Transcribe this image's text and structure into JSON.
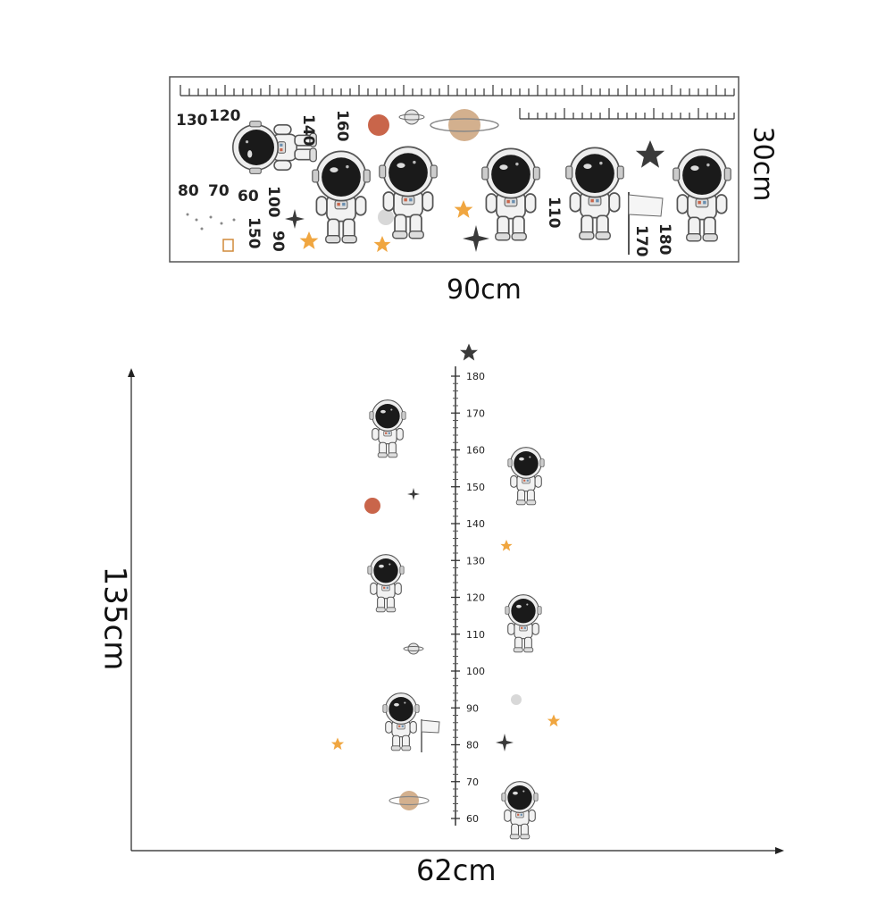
{
  "top_sheet": {
    "width_label": "90cm",
    "height_label": "30cm",
    "numbers": [
      "130",
      "120",
      "140",
      "160",
      "80",
      "70",
      "60",
      "100",
      "150",
      "90",
      "110",
      "170",
      "180"
    ]
  },
  "vertical_chart": {
    "height_label": "135cm",
    "width_label": "62cm",
    "ticks": [
      "180",
      "170",
      "160",
      "150",
      "140",
      "130",
      "120",
      "110",
      "100",
      "90",
      "80",
      "70",
      "60"
    ]
  },
  "colors": {
    "planet_orange": "#c9654a",
    "planet_tan": "#d3b08e",
    "star_orange": "#f0a640",
    "star_dark": "#3a3a3a",
    "helmet": "#1a1a1a",
    "suit": "#f2f2f2"
  }
}
